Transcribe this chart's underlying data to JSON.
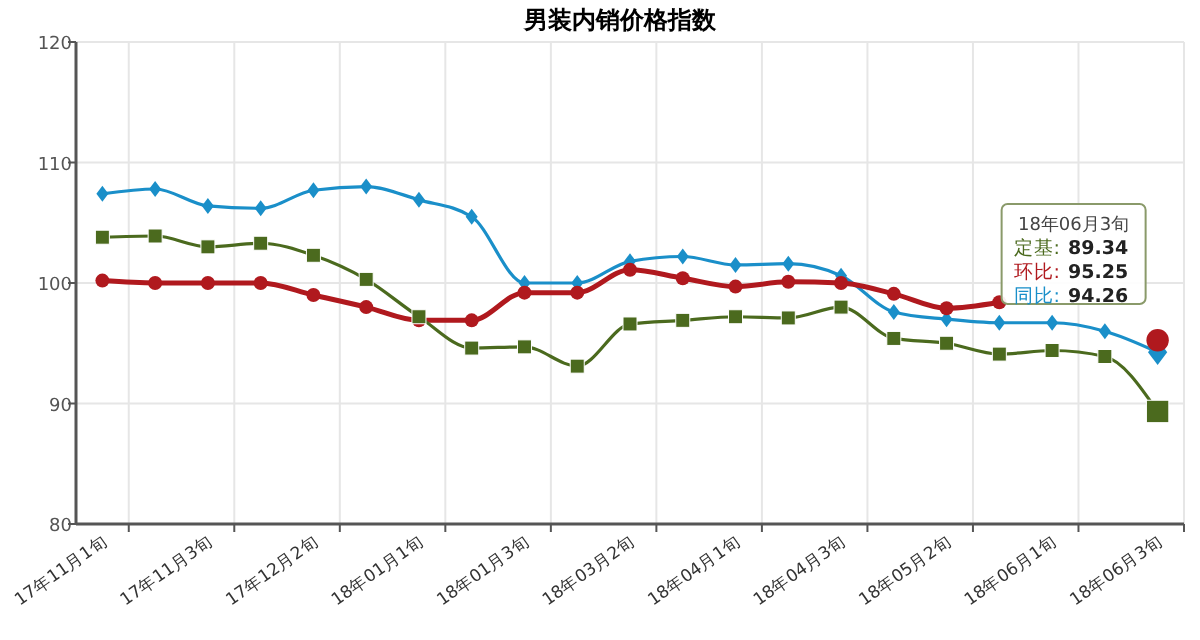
{
  "chart_data": {
    "type": "line",
    "title": "男装内销价格指数",
    "categories": [
      "17年11月1旬",
      null,
      "17年11月3旬",
      null,
      "17年12月2旬",
      null,
      "18年01月1旬",
      null,
      "18年01月3旬",
      null,
      "18年03月2旬",
      null,
      "18年04月1旬",
      null,
      "18年04月3旬",
      null,
      "18年05月2旬",
      null,
      "18年06月1旬",
      null,
      "18年06月3旬"
    ],
    "series": [
      {
        "name": "定基:",
        "color": "#4b6a1e",
        "marker": "square",
        "values": [
          103.8,
          103.9,
          103.0,
          103.3,
          102.3,
          100.3,
          97.2,
          94.6,
          94.7,
          93.1,
          96.6,
          96.9,
          97.2,
          97.1,
          98.0,
          95.4,
          95.0,
          94.1,
          94.4,
          93.9,
          89.34
        ]
      },
      {
        "name": "环比:",
        "color": "#b0191e",
        "marker": "circle",
        "values": [
          100.2,
          100.0,
          100.0,
          100.0,
          99.0,
          98.0,
          96.9,
          96.9,
          99.2,
          99.2,
          101.1,
          100.4,
          99.7,
          100.1,
          100.0,
          99.1,
          97.9,
          98.4,
          null,
          null,
          95.25
        ]
      },
      {
        "name": "同比:",
        "color": "#1a8fc9",
        "marker": "diamond",
        "values": [
          107.4,
          107.8,
          106.4,
          106.2,
          107.7,
          108.0,
          106.9,
          105.5,
          100.0,
          100.0,
          101.8,
          102.2,
          101.5,
          101.6,
          100.6,
          97.6,
          97.0,
          96.7,
          96.7,
          96.0,
          94.26
        ]
      }
    ],
    "annotations": [
      "18年06月3旬",
      "89.34",
      "95.25",
      "94.26"
    ],
    "ylim": [
      80,
      120
    ],
    "yticks": [
      80,
      90,
      100,
      110,
      120
    ],
    "grid": true,
    "legend": false
  }
}
